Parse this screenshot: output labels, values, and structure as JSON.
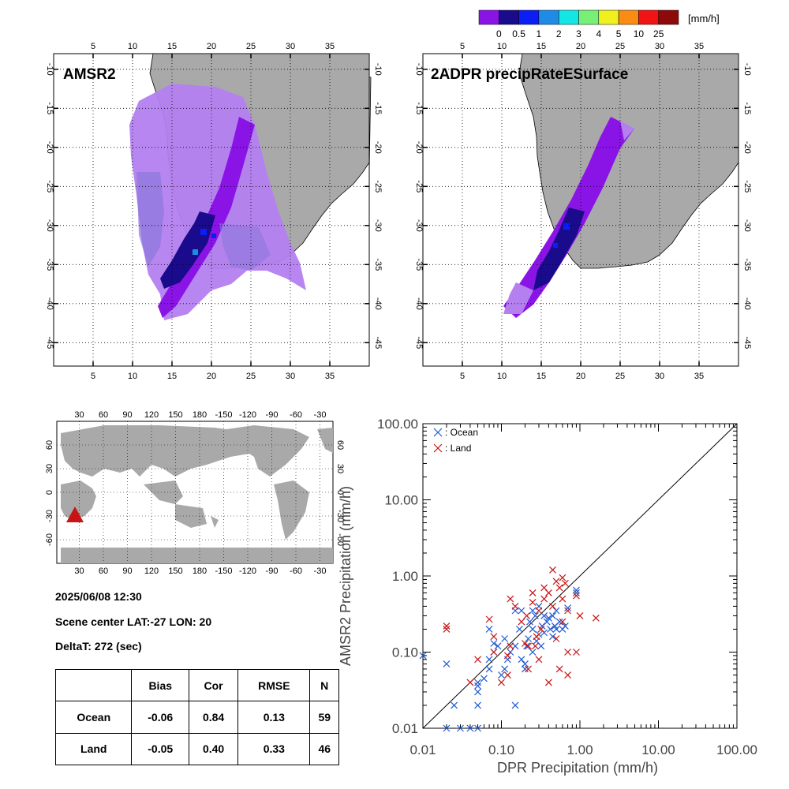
{
  "colorbar": {
    "unit": "[mm/h]",
    "tick_labels": [
      "0",
      "0.5",
      "1",
      "2",
      "3",
      "4",
      "5",
      "10",
      "25"
    ],
    "colors": [
      "#8a14e6",
      "#1a0a8c",
      "#0a1ef5",
      "#1e8ce6",
      "#14e6e6",
      "#78f078",
      "#f0f01e",
      "#fa8c14",
      "#f01414",
      "#8c0a0a"
    ]
  },
  "map_colors": {
    "land": "#a9a9a9",
    "ocean": "#ffffff"
  },
  "panels": {
    "amsr2": {
      "title": "AMSR2",
      "lon_ticks": [
        "5",
        "10",
        "15",
        "20",
        "25",
        "30",
        "35"
      ],
      "lat_ticks": [
        "-10",
        "-15",
        "-20",
        "-25",
        "-30",
        "-35",
        "-40",
        "-45"
      ]
    },
    "dpr": {
      "title": "2ADPR precipRateESurface",
      "lon_ticks": [
        "5",
        "10",
        "15",
        "20",
        "25",
        "30",
        "35"
      ],
      "lat_ticks": [
        "-10",
        "-15",
        "-20",
        "-25",
        "-30",
        "-35",
        "-40",
        "-45"
      ]
    }
  },
  "world_map": {
    "top_lon_ticks": [
      "30",
      "60",
      "90",
      "120",
      "150",
      "180",
      "-150",
      "-120",
      "-90",
      "-60",
      "-30"
    ],
    "bottom_lon_ticks": [
      "30",
      "60",
      "90",
      "120",
      "150",
      "180",
      "-150",
      "-120",
      "-90",
      "-60",
      "-30"
    ],
    "lat_ticks": [
      "60",
      "30",
      "0",
      "-30",
      "-60"
    ],
    "marker_color": "#c81414"
  },
  "scene": {
    "datetime": "2025/06/08 12:30",
    "center": "Scene center LAT:-27   LON:  20",
    "delta": "DeltaT:  272 (sec)"
  },
  "stats_table": {
    "headers": [
      "",
      "Bias",
      "Cor",
      "RMSE",
      "N"
    ],
    "rows": [
      [
        "Ocean",
        "-0.06",
        "0.84",
        "0.13",
        "59"
      ],
      [
        "Land",
        "-0.05",
        "0.40",
        "0.33",
        "46"
      ]
    ]
  },
  "chart_data": {
    "type": "scatter",
    "xlabel": "DPR Precipitation (mm/h)",
    "ylabel": "AMSR2 Precipitation (mm/h)",
    "x_scale": "log",
    "y_scale": "log",
    "xlim": [
      0.01,
      100
    ],
    "ylim": [
      0.01,
      100
    ],
    "tick_labels": [
      "0.01",
      "0.10",
      "1.00",
      "10.00",
      "100.00"
    ],
    "tick_values": [
      0.01,
      0.1,
      1,
      10,
      100
    ],
    "reference_line": "1:1",
    "legend_position": "top-left",
    "series": [
      {
        "name": ": Ocean",
        "color": "#1e5ad2",
        "marker": "x",
        "points": [
          [
            0.01,
            0.09
          ],
          [
            0.02,
            0.07
          ],
          [
            0.02,
            0.01
          ],
          [
            0.025,
            0.02
          ],
          [
            0.03,
            0.01
          ],
          [
            0.04,
            0.01
          ],
          [
            0.05,
            0.01
          ],
          [
            0.05,
            0.02
          ],
          [
            0.05,
            0.03
          ],
          [
            0.05,
            0.036
          ],
          [
            0.06,
            0.045
          ],
          [
            0.07,
            0.06
          ],
          [
            0.07,
            0.08
          ],
          [
            0.08,
            0.1
          ],
          [
            0.08,
            0.13
          ],
          [
            0.09,
            0.12
          ],
          [
            0.07,
            0.2
          ],
          [
            0.1,
            0.05
          ],
          [
            0.11,
            0.06
          ],
          [
            0.12,
            0.08
          ],
          [
            0.13,
            0.1
          ],
          [
            0.15,
            0.12
          ],
          [
            0.15,
            0.02
          ],
          [
            0.17,
            0.2
          ],
          [
            0.18,
            0.35
          ],
          [
            0.18,
            0.08
          ],
          [
            0.2,
            0.06
          ],
          [
            0.2,
            0.07
          ],
          [
            0.21,
            0.12
          ],
          [
            0.22,
            0.15
          ],
          [
            0.23,
            0.25
          ],
          [
            0.25,
            0.1
          ],
          [
            0.25,
            0.2
          ],
          [
            0.27,
            0.3
          ],
          [
            0.28,
            0.14
          ],
          [
            0.3,
            0.17
          ],
          [
            0.3,
            0.4
          ],
          [
            0.32,
            0.12
          ],
          [
            0.33,
            0.22
          ],
          [
            0.35,
            0.3
          ],
          [
            0.35,
            0.18
          ],
          [
            0.38,
            0.25
          ],
          [
            0.4,
            0.28
          ],
          [
            0.42,
            0.2
          ],
          [
            0.45,
            0.16
          ],
          [
            0.45,
            0.3
          ],
          [
            0.48,
            0.22
          ],
          [
            0.5,
            0.35
          ],
          [
            0.5,
            0.2
          ],
          [
            0.55,
            0.25
          ],
          [
            0.6,
            0.2
          ],
          [
            0.65,
            0.22
          ],
          [
            0.7,
            0.38
          ],
          [
            0.9,
            0.65
          ],
          [
            0.9,
            0.6
          ],
          [
            0.25,
            0.35
          ],
          [
            0.15,
            0.35
          ],
          [
            0.05,
            0.04
          ],
          [
            0.11,
            0.15
          ]
        ]
      },
      {
        "name": ": Land",
        "color": "#c81414",
        "marker": "x",
        "points": [
          [
            0.02,
            0.2
          ],
          [
            0.02,
            0.22
          ],
          [
            0.04,
            0.04
          ],
          [
            0.05,
            0.08
          ],
          [
            0.07,
            0.27
          ],
          [
            0.08,
            0.16
          ],
          [
            0.1,
            0.04
          ],
          [
            0.12,
            0.05
          ],
          [
            0.13,
            0.5
          ],
          [
            0.15,
            0.4
          ],
          [
            0.2,
            0.13
          ],
          [
            0.21,
            0.3
          ],
          [
            0.22,
            0.12
          ],
          [
            0.25,
            0.45
          ],
          [
            0.27,
            0.12
          ],
          [
            0.3,
            0.35
          ],
          [
            0.35,
            0.7
          ],
          [
            0.35,
            0.5
          ],
          [
            0.4,
            0.04
          ],
          [
            0.45,
            1.2
          ],
          [
            0.5,
            0.85
          ],
          [
            0.55,
            0.7
          ],
          [
            0.55,
            0.06
          ],
          [
            0.6,
            0.5
          ],
          [
            0.6,
            0.95
          ],
          [
            0.65,
            0.8
          ],
          [
            0.7,
            0.05
          ],
          [
            0.7,
            0.1
          ],
          [
            0.9,
            0.55
          ],
          [
            1.0,
            0.3
          ],
          [
            1.6,
            0.28
          ],
          [
            0.3,
            0.08
          ],
          [
            0.25,
            0.6
          ],
          [
            0.4,
            0.6
          ],
          [
            0.9,
            0.1
          ],
          [
            0.5,
            0.15
          ],
          [
            0.08,
            0.1
          ],
          [
            0.13,
            0.12
          ],
          [
            0.18,
            0.25
          ],
          [
            0.32,
            0.2
          ],
          [
            0.6,
            0.25
          ],
          [
            0.12,
            0.09
          ],
          [
            0.45,
            0.4
          ],
          [
            0.7,
            0.35
          ],
          [
            0.28,
            0.16
          ],
          [
            0.22,
            0.06
          ]
        ]
      }
    ]
  }
}
